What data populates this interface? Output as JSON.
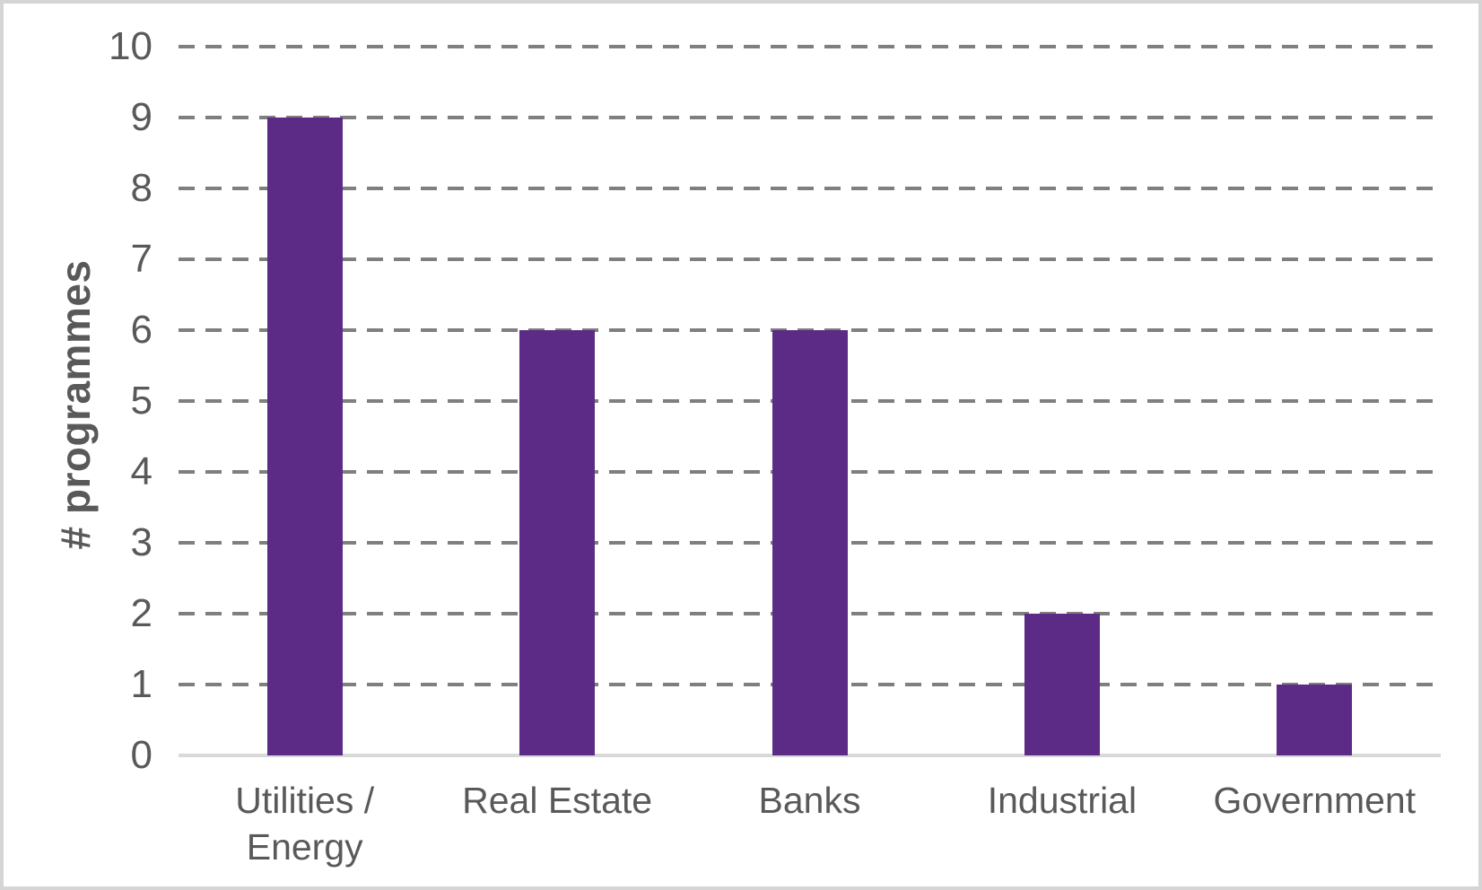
{
  "chart_data": {
    "type": "bar",
    "categories": [
      "Utilities / Energy",
      "Real Estate",
      "Banks",
      "Industrial",
      "Government"
    ],
    "values": [
      9,
      6,
      6,
      2,
      1
    ],
    "title": "",
    "xlabel": "",
    "ylabel": "# programmes",
    "ylim": [
      0,
      10
    ],
    "ytick_step": 1,
    "yticks": [
      0,
      1,
      2,
      3,
      4,
      5,
      6,
      7,
      8,
      9,
      10
    ],
    "grid": "horizontal-dashed",
    "legend_position": "none",
    "colors": {
      "bar": "#5b2b85",
      "gridline": "#7f7f7f",
      "axis_line": "#d9d9d9",
      "tick_label": "#595959",
      "category_label": "#595959",
      "background": "#ffffff",
      "frame_border": "#d5d5d5"
    }
  }
}
